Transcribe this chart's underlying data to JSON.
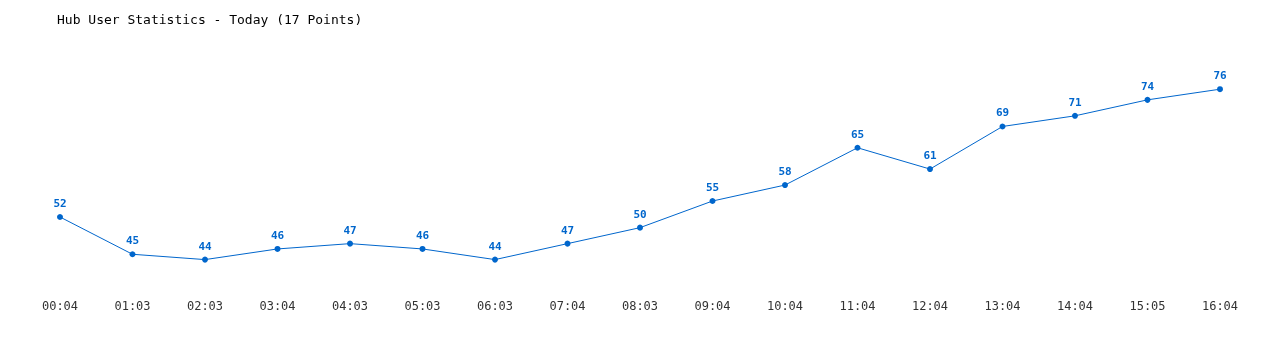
{
  "chart_data": {
    "type": "line",
    "title": "Hub User Statistics - Today (17 Points)",
    "categories": [
      "00:04",
      "01:03",
      "02:03",
      "03:04",
      "04:03",
      "05:03",
      "06:03",
      "07:04",
      "08:03",
      "09:04",
      "10:04",
      "11:04",
      "12:04",
      "13:04",
      "14:04",
      "15:05",
      "16:04"
    ],
    "series": [
      {
        "color": "#0066cc",
        "values": [
          52,
          45,
          44,
          46,
          47,
          46,
          44,
          47,
          50,
          55,
          58,
          65,
          61,
          69,
          71,
          74,
          76
        ]
      }
    ],
    "data_labels": true,
    "marker": "circle"
  }
}
